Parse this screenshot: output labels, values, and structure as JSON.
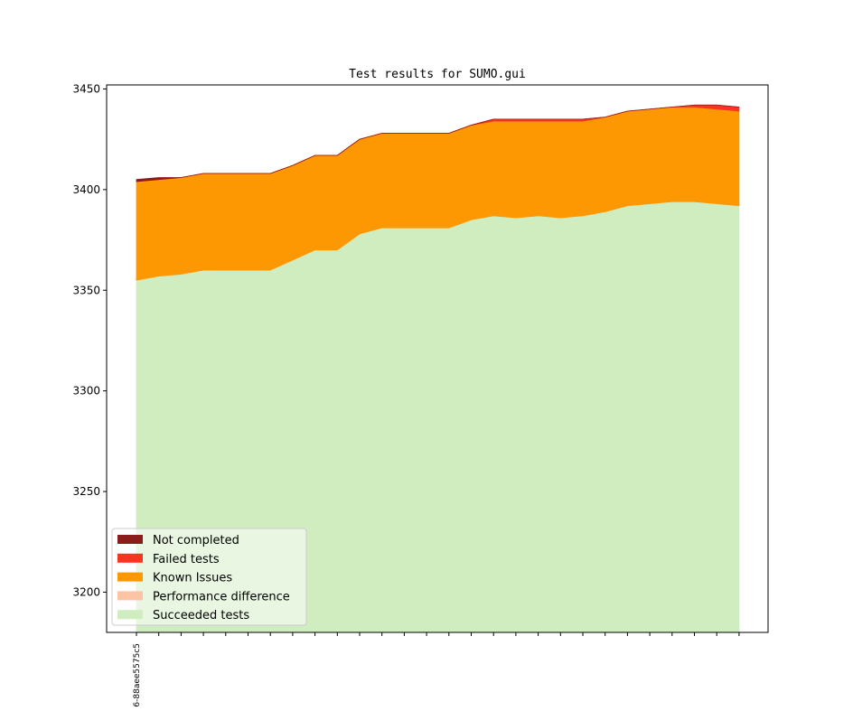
{
  "chart_data": {
    "type": "area",
    "title": "Test results for SUMO.gui",
    "xlabel": "",
    "ylabel": "",
    "ylim": [
      3180,
      3452
    ],
    "yticks": [
      3200,
      3250,
      3300,
      3350,
      3400,
      3450
    ],
    "x_tick_labels": [
      "6-88aee5575c5"
    ],
    "legend_position": "lower-left",
    "x": [
      0,
      1,
      2,
      3,
      4,
      5,
      6,
      7,
      8,
      9,
      10,
      11,
      12,
      13,
      14,
      15,
      16,
      17,
      18,
      19,
      20,
      21,
      22,
      23,
      24,
      25,
      26,
      27
    ],
    "series": [
      {
        "name": "Succeeded tests",
        "color": "#cfedbf",
        "values": [
          3355,
          3357,
          3358,
          3360,
          3360,
          3360,
          3360,
          3365,
          3370,
          3370,
          3378,
          3381,
          3381,
          3381,
          3381,
          3385,
          3387,
          3386,
          3387,
          3386,
          3387,
          3389,
          3392,
          3393,
          3394,
          3394,
          3393,
          3392
        ]
      },
      {
        "name": "Performance difference",
        "color": "#fcc4a4",
        "values": [
          0,
          0,
          0,
          0,
          0,
          0,
          0,
          0,
          0,
          0,
          0,
          0,
          0,
          0,
          0,
          0,
          0,
          0,
          0,
          0,
          0,
          0,
          0,
          0,
          0,
          0,
          0,
          0
        ]
      },
      {
        "name": "Known Issues",
        "color": "#fd9802",
        "values": [
          49,
          48,
          48,
          48,
          48,
          48,
          48,
          47,
          47,
          47,
          47,
          47,
          47,
          47,
          47,
          47,
          47,
          48,
          47,
          48,
          47,
          47,
          47,
          47,
          47,
          47,
          47,
          47
        ]
      },
      {
        "name": "Failed tests",
        "color": "#fb3421",
        "values": [
          0,
          0,
          0,
          0,
          0,
          0,
          0,
          0,
          0,
          0,
          0,
          0,
          0,
          0,
          0,
          0,
          1,
          1,
          1,
          1,
          1,
          0,
          0,
          0,
          0,
          1,
          2,
          2
        ]
      },
      {
        "name": "Not completed",
        "color": "#8b1c1c",
        "values": [
          1,
          1,
          0,
          0,
          0,
          0,
          0,
          0,
          0,
          0,
          0,
          0,
          0,
          0,
          0,
          0,
          0,
          0,
          0,
          0,
          0,
          0,
          0,
          0,
          0,
          0,
          0,
          0
        ]
      }
    ],
    "legend_order": [
      "Not completed",
      "Failed tests",
      "Known Issues",
      "Performance difference",
      "Succeeded tests"
    ]
  }
}
